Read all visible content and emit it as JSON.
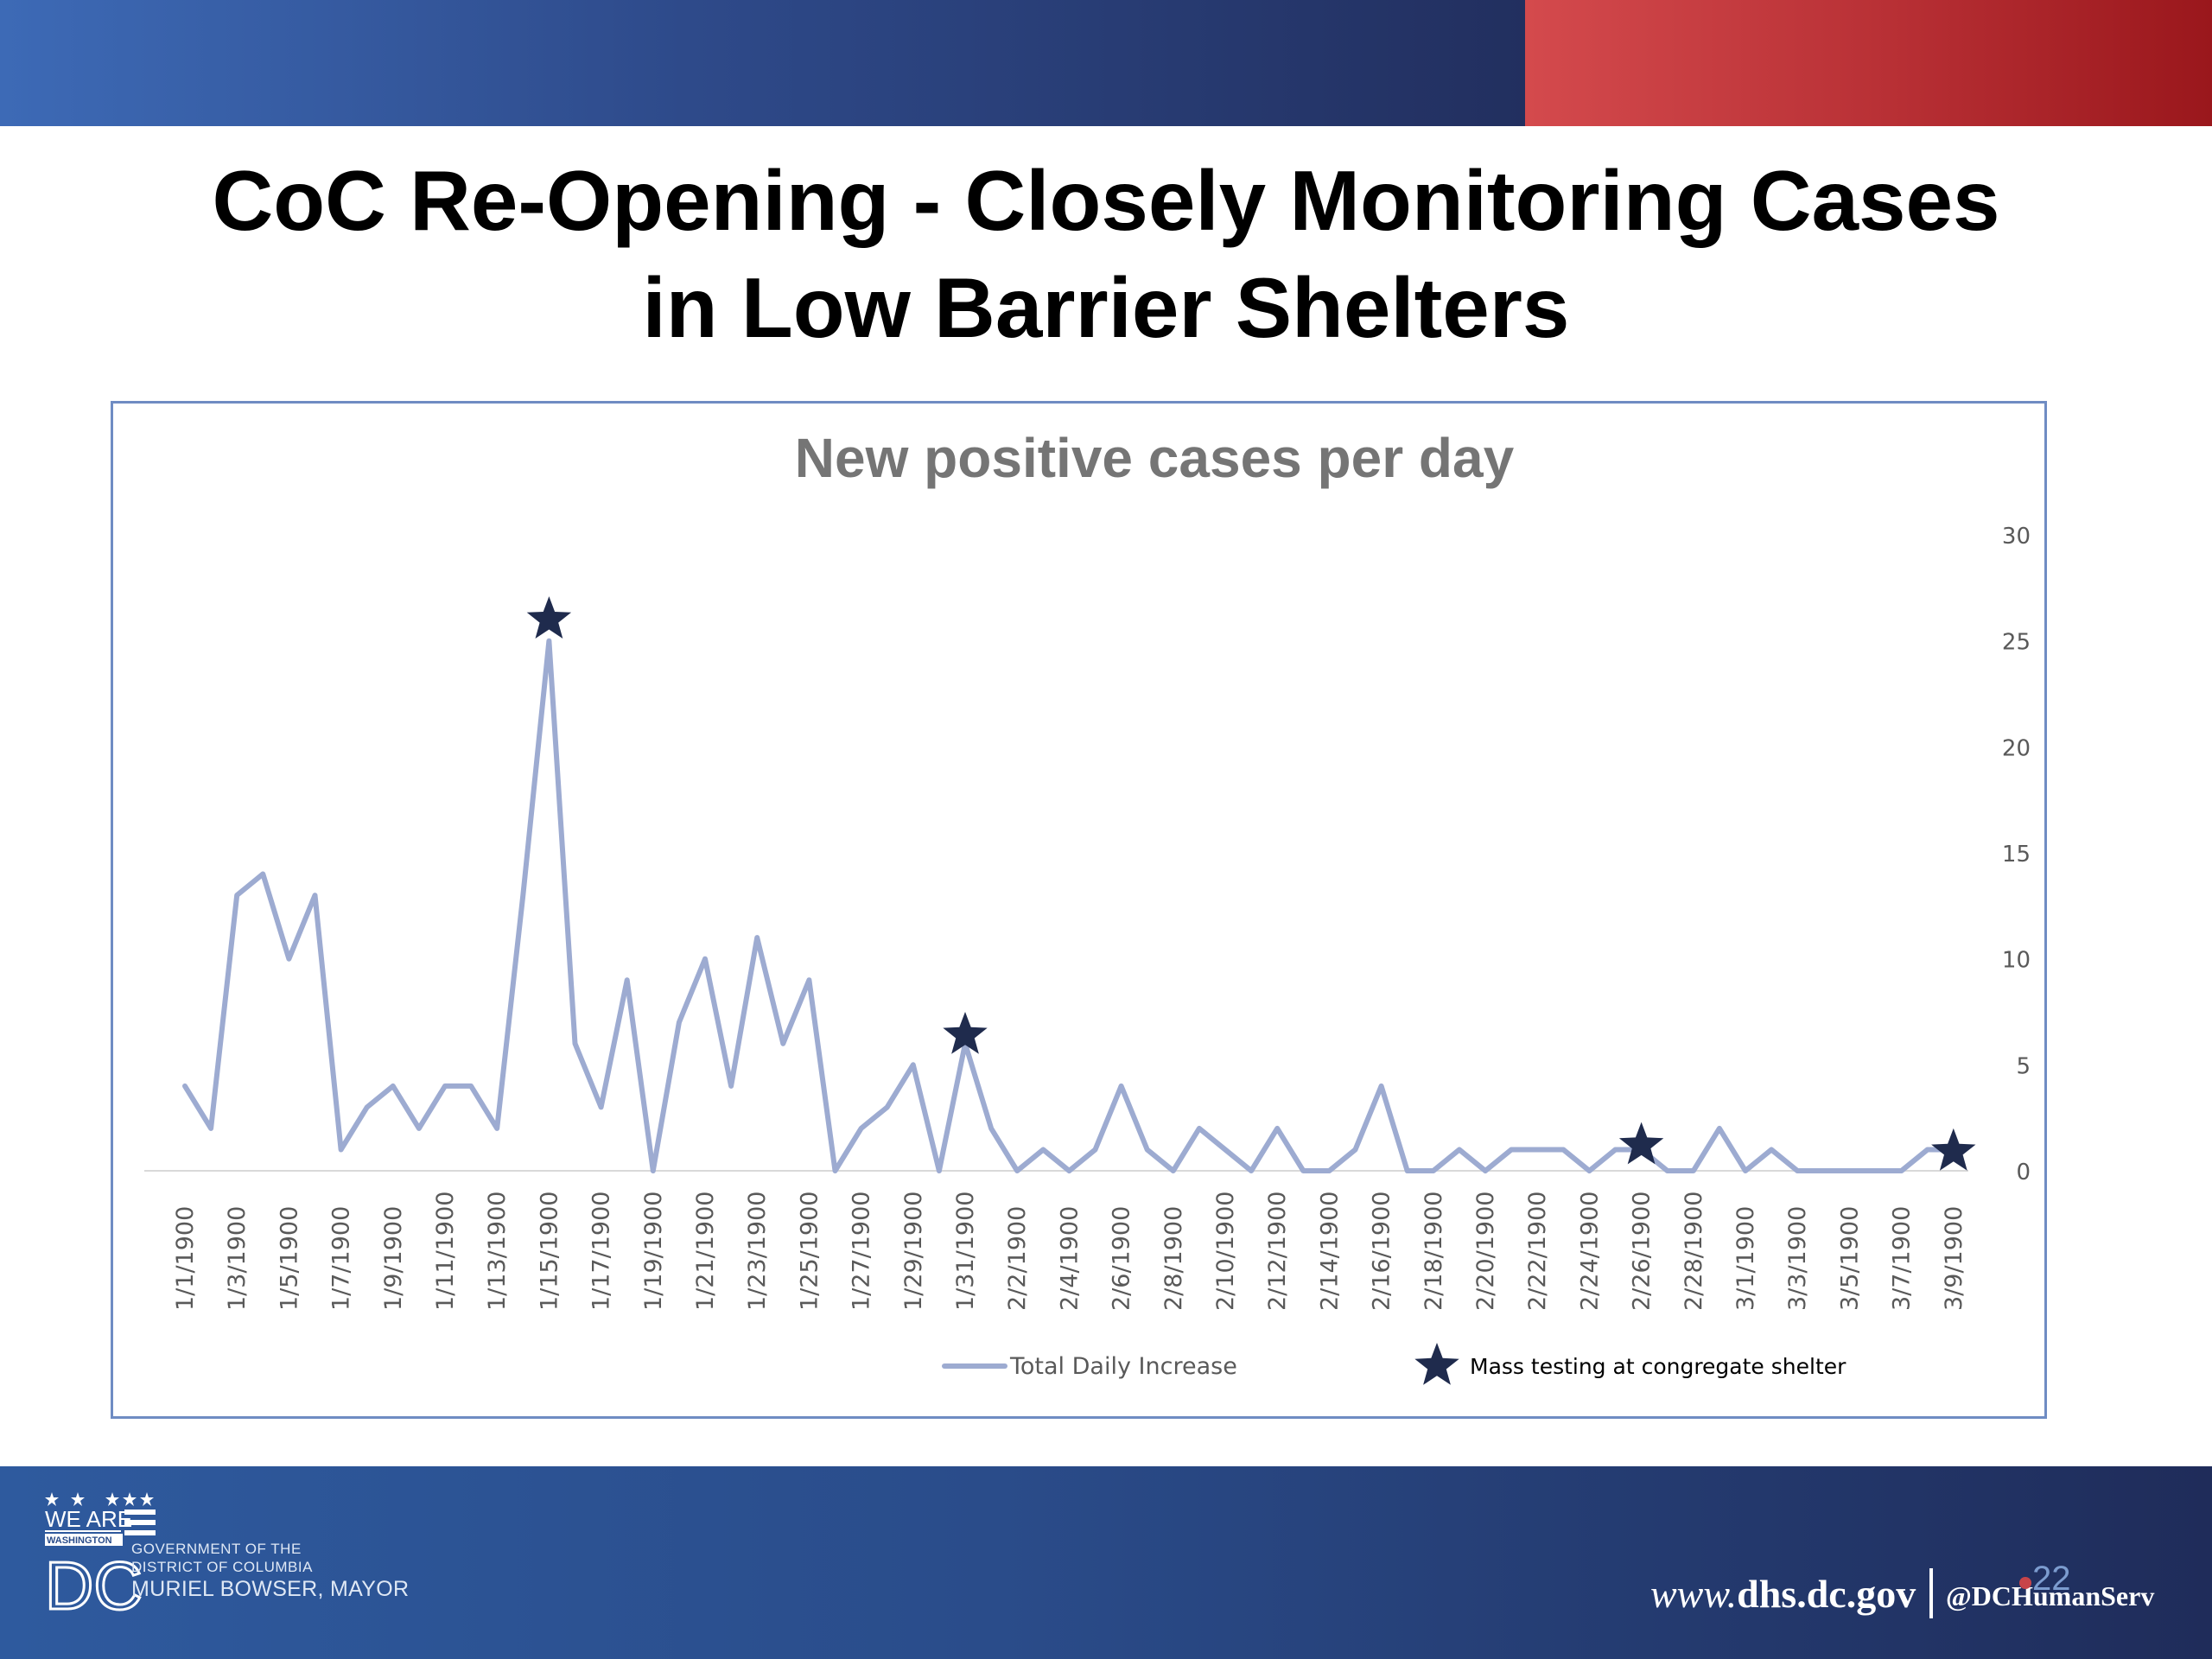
{
  "slide": {
    "title_line1": "CoC Re-Opening - Closely Monitoring Cases",
    "title_line2": "in Low Barrier Shelters",
    "page_number": "22"
  },
  "footer": {
    "logo_we_are": "WE ARE",
    "logo_washington": "WASHINGTON",
    "logo_dc": "DC",
    "gov_line1": "GOVERNMENT OF THE",
    "gov_line2": "DISTRICT OF COLUMBIA",
    "gov_line3": "MURIEL BOWSER, MAYOR",
    "website_prefix": "www.",
    "website_domain": "dhs.dc.gov",
    "twitter": "@DCHumanServ"
  },
  "colors": {
    "line": "#9dabd1",
    "star": "#1f2b4d",
    "title_gray": "#757575",
    "axis_text": "#595959"
  },
  "chart_data": {
    "type": "line",
    "title": "New positive cases per day",
    "xlabel": "",
    "ylabel": "",
    "y_axis_position": "right",
    "ylim": [
      0,
      30
    ],
    "yticks": [
      0,
      5,
      10,
      15,
      20,
      25,
      30
    ],
    "grid": false,
    "legend_position": "bottom",
    "x_tick_labels": [
      "1/1/1900",
      "1/3/1900",
      "1/5/1900",
      "1/7/1900",
      "1/9/1900",
      "1/11/1900",
      "1/13/1900",
      "1/15/1900",
      "1/17/1900",
      "1/19/1900",
      "1/21/1900",
      "1/23/1900",
      "1/25/1900",
      "1/27/1900",
      "1/29/1900",
      "1/31/1900",
      "2/2/1900",
      "2/4/1900",
      "2/6/1900",
      "2/8/1900",
      "2/10/1900",
      "2/12/1900",
      "2/14/1900",
      "2/16/1900",
      "2/18/1900",
      "2/20/1900",
      "2/22/1900",
      "2/24/1900",
      "2/26/1900",
      "2/28/1900",
      "3/1/1900",
      "3/3/1900",
      "3/5/1900",
      "3/7/1900",
      "3/9/1900"
    ],
    "series": [
      {
        "name": "Total Daily Increase",
        "values": [
          4,
          2,
          13,
          14,
          10,
          13,
          1,
          3,
          4,
          2,
          4,
          4,
          2,
          13,
          25,
          6,
          3,
          9,
          0,
          7,
          10,
          4,
          11,
          6,
          9,
          0,
          2,
          3,
          5,
          0,
          6,
          2,
          0,
          1,
          0,
          1,
          4,
          1,
          0,
          2,
          1,
          0,
          2,
          0,
          0,
          1,
          4,
          0,
          0,
          1,
          0,
          1,
          1,
          1,
          0,
          1,
          1,
          0,
          0,
          2,
          0,
          1,
          0,
          0,
          0,
          0,
          0,
          1,
          1
        ]
      }
    ],
    "markers": {
      "name": "Mass testing at congregate shelter",
      "points": [
        {
          "x": "1/15/1900",
          "y": 26
        },
        {
          "x": "1/31/1900",
          "y": 6.4
        },
        {
          "x": "2/26/1900",
          "y": 1.2
        },
        {
          "x": "3/9/1900",
          "y": 0.9
        }
      ]
    }
  }
}
